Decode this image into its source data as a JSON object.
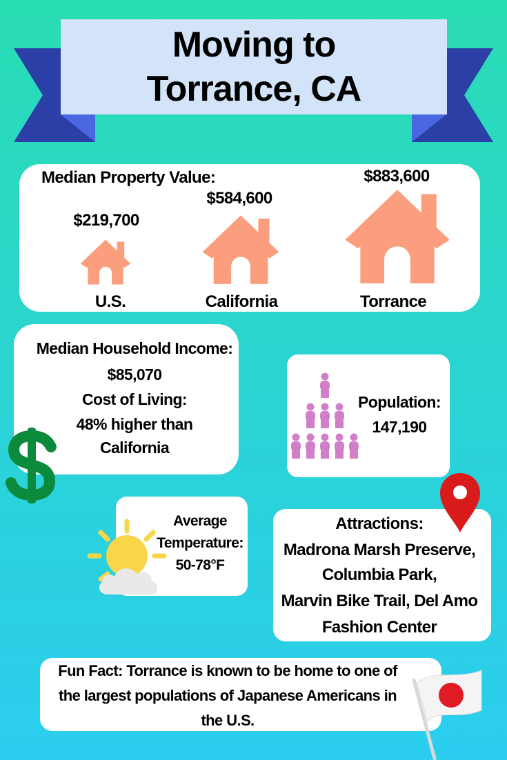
{
  "header": {
    "title_line1": "Moving to",
    "title_line2": "Torrance, CA"
  },
  "property": {
    "heading": "Median Property Value:",
    "us_value": "$219,700",
    "us_label": "U.S.",
    "ca_value": "$584,600",
    "ca_label": "California",
    "torrance_value": "$883,600",
    "torrance_label": "Torrance"
  },
  "income": {
    "heading": "Median Household Income:",
    "value": "$85,070",
    "col_heading": "Cost of Living:",
    "col_line1": "48% higher than",
    "col_line2": "California"
  },
  "population": {
    "heading": "Population:",
    "value": "147,190"
  },
  "temperature": {
    "line1": "Average",
    "line2": "Temperature:",
    "value": "50-78°F"
  },
  "attractions": {
    "heading": "Attractions:",
    "line1": "Madrona Marsh Preserve,",
    "line2": "Columbia Park,",
    "line3": "Marvin Bike Trail, Del Amo",
    "line4": "Fashion Center"
  },
  "funfact": {
    "line1": "Fun Fact:  Torrance is known to be home to one of",
    "line2": "the largest populations of Japanese Americans in",
    "line3": "the U.S."
  },
  "colors": {
    "house": "#fb9e7e",
    "people": "#d17fc9",
    "dollar": "#0b8a3b",
    "pin": "#d91b1b",
    "ribbon": "#2b3fa7",
    "ribbon_fold": "#4a66e0"
  },
  "icons": [
    "house-icon",
    "people-icon",
    "dollar-icon",
    "sun-cloud-icon",
    "map-pin-icon",
    "japan-flag-icon"
  ]
}
